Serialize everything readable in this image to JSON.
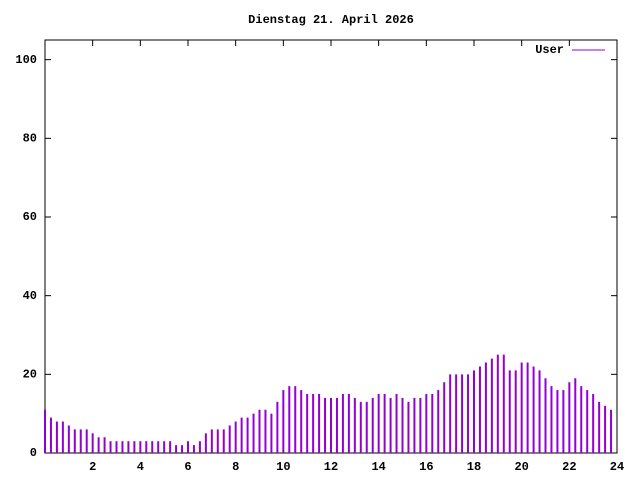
{
  "chart_data": {
    "type": "impulse",
    "title": "Dienstag 21. April 2026",
    "x": [
      0,
      0.25,
      0.5,
      0.75,
      1,
      1.25,
      1.5,
      1.75,
      2,
      2.25,
      2.5,
      2.75,
      3,
      3.25,
      3.5,
      3.75,
      4,
      4.25,
      4.5,
      4.75,
      5,
      5.25,
      5.5,
      5.75,
      6,
      6.25,
      6.5,
      6.75,
      7,
      7.25,
      7.5,
      7.75,
      8,
      8.25,
      8.5,
      8.75,
      9,
      9.25,
      9.5,
      9.75,
      10,
      10.25,
      10.5,
      10.75,
      11,
      11.25,
      11.5,
      11.75,
      12,
      12.25,
      12.5,
      12.75,
      13,
      13.25,
      13.5,
      13.75,
      14,
      14.25,
      14.5,
      14.75,
      15,
      15.25,
      15.5,
      15.75,
      16,
      16.25,
      16.5,
      16.75,
      17,
      17.25,
      17.5,
      17.75,
      18,
      18.25,
      18.5,
      18.75,
      19,
      19.25,
      19.5,
      19.75,
      20,
      20.25,
      20.5,
      20.75,
      21,
      21.25,
      21.5,
      21.75,
      22,
      22.25,
      22.5,
      22.75,
      23,
      23.25,
      23.5,
      23.75
    ],
    "series": [
      {
        "name": "User",
        "color": "#9400d3",
        "values": [
          11,
          9,
          8,
          8,
          7,
          6,
          6,
          6,
          5,
          4,
          4,
          3,
          3,
          3,
          3,
          3,
          3,
          3,
          3,
          3,
          3,
          3,
          2,
          2,
          3,
          2,
          3,
          5,
          6,
          6,
          6,
          7,
          8,
          9,
          9,
          10,
          11,
          11,
          10,
          13,
          16,
          17,
          17,
          16,
          15,
          15,
          15,
          14,
          14,
          14,
          15,
          15,
          14,
          13,
          13,
          14,
          15,
          15,
          14,
          15,
          14,
          13,
          14,
          14,
          15,
          15,
          16,
          18,
          20,
          20,
          20,
          20,
          21,
          22,
          23,
          24,
          25,
          25,
          21,
          21,
          23,
          23,
          22,
          21,
          19,
          17,
          16,
          16,
          18,
          19,
          17,
          16,
          15,
          13,
          12,
          11
        ]
      }
    ],
    "xlim": [
      0,
      24
    ],
    "ylim": [
      0,
      105
    ],
    "xticks": [
      2,
      4,
      6,
      8,
      10,
      12,
      14,
      16,
      18,
      20,
      22,
      24
    ],
    "yticks": [
      0,
      20,
      40,
      60,
      80,
      100
    ]
  }
}
